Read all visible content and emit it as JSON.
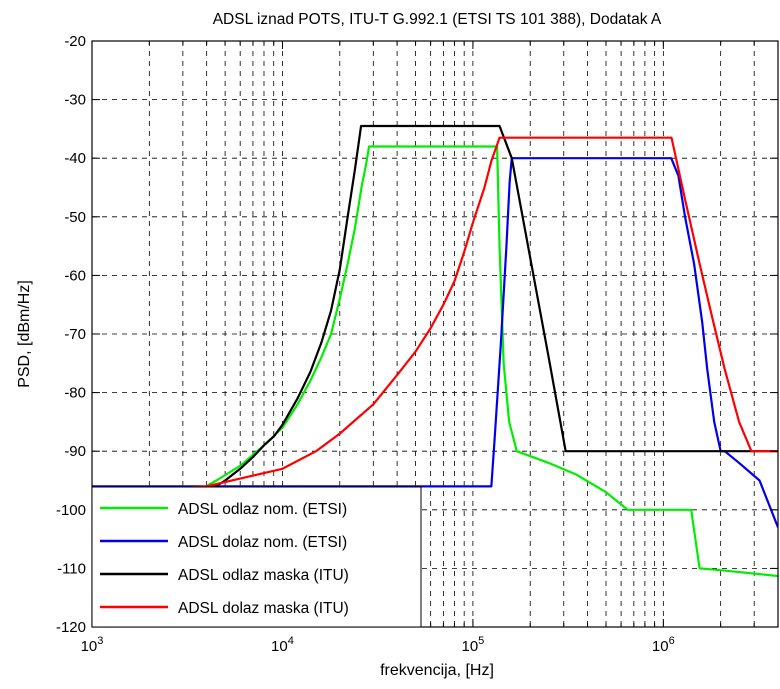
{
  "chart_data": {
    "type": "line",
    "title": "ADSL iznad POTS, ITU-T G.992.1 (ETSI TS 101 388), Dodatak A",
    "xlabel": "frekvencija, [Hz]",
    "ylabel": "PSD, [dBm/Hz]",
    "xscale": "log",
    "xlim": [
      1000,
      4000000
    ],
    "ylim": [
      -120,
      -20
    ],
    "yticks": [
      -20,
      -30,
      -40,
      -50,
      -60,
      -70,
      -80,
      -90,
      -100,
      -110,
      -120
    ],
    "xticks": [
      {
        "value": 1000,
        "base": "10",
        "exp": "3"
      },
      {
        "value": 10000,
        "base": "10",
        "exp": "4"
      },
      {
        "value": 100000,
        "base": "10",
        "exp": "5"
      },
      {
        "value": 1000000,
        "base": "10",
        "exp": "6"
      }
    ],
    "grid": true,
    "legend_position": "bottom-left",
    "series": [
      {
        "name": "ADSL odlaz nom. (ETSI)",
        "color": "#00ee00",
        "points": [
          [
            3500,
            -97
          ],
          [
            4500,
            -95
          ],
          [
            6000,
            -92.5
          ],
          [
            8000,
            -89
          ],
          [
            10000,
            -86
          ],
          [
            12000,
            -82
          ],
          [
            14000,
            -78
          ],
          [
            16000,
            -74
          ],
          [
            18000,
            -70
          ],
          [
            20000,
            -64
          ],
          [
            22000,
            -58
          ],
          [
            24000,
            -52
          ],
          [
            26000,
            -45
          ],
          [
            27500,
            -41
          ],
          [
            28500,
            -38
          ],
          [
            134000,
            -38
          ],
          [
            138000,
            -55
          ],
          [
            145000,
            -75
          ],
          [
            155000,
            -85
          ],
          [
            170000,
            -90
          ],
          [
            250000,
            -92
          ],
          [
            350000,
            -94
          ],
          [
            500000,
            -97
          ],
          [
            650000,
            -100
          ],
          [
            1400000,
            -100
          ],
          [
            1550000,
            -110
          ],
          [
            2000000,
            -110.3
          ],
          [
            4000000,
            -111.3
          ]
        ]
      },
      {
        "name": "ADSL dolaz nom. (ETSI)",
        "color": "#0000ee",
        "points": [
          [
            1000,
            -96
          ],
          [
            125000,
            -96
          ],
          [
            130000,
            -88
          ],
          [
            140000,
            -72
          ],
          [
            150000,
            -55
          ],
          [
            156000,
            -44
          ],
          [
            160000,
            -40
          ],
          [
            1100000,
            -40
          ],
          [
            1200000,
            -43
          ],
          [
            1300000,
            -50
          ],
          [
            1450000,
            -58
          ],
          [
            1600000,
            -68
          ],
          [
            1700000,
            -76
          ],
          [
            1850000,
            -85
          ],
          [
            2000000,
            -90
          ],
          [
            2100000,
            -90
          ],
          [
            2500000,
            -92
          ],
          [
            3200000,
            -95
          ],
          [
            4000000,
            -103
          ]
        ]
      },
      {
        "name": "ADSL odlaz maska (ITU)",
        "color": "#000000",
        "points": [
          [
            3600,
            -98
          ],
          [
            4000,
            -97
          ],
          [
            5000,
            -95
          ],
          [
            6000,
            -93
          ],
          [
            7000,
            -91
          ],
          [
            8000,
            -89
          ],
          [
            9000,
            -87.5
          ],
          [
            10000,
            -85.5
          ],
          [
            12000,
            -81
          ],
          [
            14000,
            -76.5
          ],
          [
            16000,
            -71.5
          ],
          [
            18000,
            -66
          ],
          [
            20000,
            -59
          ],
          [
            22000,
            -50
          ],
          [
            24000,
            -42
          ],
          [
            25875,
            -34.5
          ],
          [
            138000,
            -34.5
          ],
          [
            160000,
            -40
          ],
          [
            200000,
            -57
          ],
          [
            250000,
            -74
          ],
          [
            307000,
            -90
          ],
          [
            4000000,
            -90
          ]
        ]
      },
      {
        "name": "ADSL dolaz maska (ITU)",
        "color": "#ff0000",
        "points": [
          [
            1000,
            -97.5
          ],
          [
            4000,
            -96
          ],
          [
            10000,
            -93
          ],
          [
            15000,
            -90
          ],
          [
            20000,
            -87
          ],
          [
            30000,
            -82
          ],
          [
            40000,
            -77
          ],
          [
            50000,
            -73
          ],
          [
            60000,
            -69
          ],
          [
            70000,
            -65
          ],
          [
            80000,
            -61
          ],
          [
            90000,
            -56
          ],
          [
            100000,
            -51
          ],
          [
            115000,
            -45
          ],
          [
            125000,
            -40.5
          ],
          [
            138000,
            -36.5
          ],
          [
            1104000,
            -36.5
          ],
          [
            1300000,
            -47
          ],
          [
            1550000,
            -58
          ],
          [
            1800000,
            -67
          ],
          [
            2100000,
            -76
          ],
          [
            2500000,
            -85
          ],
          [
            2900000,
            -90
          ],
          [
            4000000,
            -90
          ]
        ]
      }
    ]
  }
}
